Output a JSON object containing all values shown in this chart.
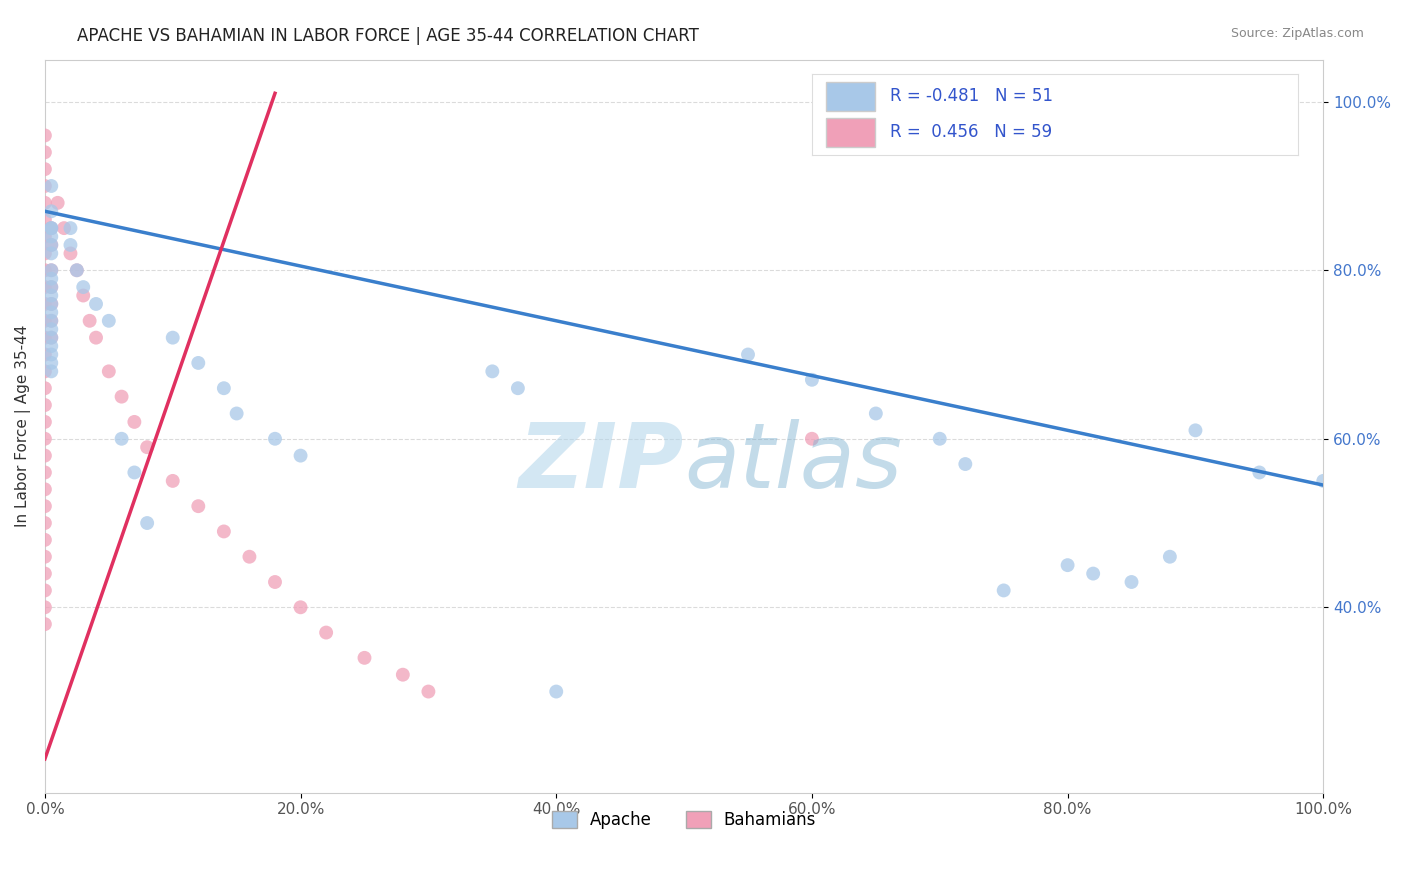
{
  "title": "APACHE VS BAHAMIAN IN LABOR FORCE | AGE 35-44 CORRELATION CHART",
  "source": "Source: ZipAtlas.com",
  "ylabel": "In Labor Force | Age 35-44",
  "xlim": [
    0.0,
    1.0
  ],
  "ylim": [
    0.18,
    1.05
  ],
  "xticks": [
    0.0,
    0.2,
    0.4,
    0.6,
    0.8,
    1.0
  ],
  "yticks": [
    0.4,
    0.6,
    0.8,
    1.0
  ],
  "ytick_labels": [
    "40.0%",
    "60.0%",
    "80.0%",
    "100.0%"
  ],
  "xtick_labels": [
    "0.0%",
    "20.0%",
    "40.0%",
    "60.0%",
    "80.0%",
    "100.0%"
  ],
  "apache_color": "#a8c8e8",
  "bahamian_color": "#f0a0b8",
  "apache_line_color": "#3a7fcc",
  "bahamian_line_color": "#e03060",
  "r_text_color": "#3355cc",
  "watermark_color": "#c8e0f0",
  "background_color": "#ffffff",
  "grid_color": "#cccccc",
  "apache_R": -0.481,
  "apache_N": 51,
  "bahamian_R": 0.456,
  "bahamian_N": 59,
  "apache_x": [
    0.005,
    0.005,
    0.005,
    0.005,
    0.005,
    0.005,
    0.005,
    0.005,
    0.005,
    0.005,
    0.005,
    0.005,
    0.005,
    0.005,
    0.005,
    0.005,
    0.005,
    0.005,
    0.005,
    0.005,
    0.02,
    0.02,
    0.025,
    0.03,
    0.04,
    0.05,
    0.06,
    0.07,
    0.08,
    0.1,
    0.12,
    0.14,
    0.15,
    0.18,
    0.2,
    0.35,
    0.37,
    0.4,
    0.55,
    0.6,
    0.65,
    0.7,
    0.72,
    0.75,
    0.8,
    0.82,
    0.85,
    0.88,
    0.9,
    0.95,
    1.0
  ],
  "apache_y": [
    0.87,
    0.85,
    0.84,
    0.83,
    0.82,
    0.8,
    0.79,
    0.78,
    0.77,
    0.76,
    0.75,
    0.74,
    0.73,
    0.72,
    0.71,
    0.7,
    0.69,
    0.68,
    0.85,
    0.9,
    0.85,
    0.83,
    0.8,
    0.78,
    0.76,
    0.74,
    0.6,
    0.56,
    0.5,
    0.72,
    0.69,
    0.66,
    0.63,
    0.6,
    0.58,
    0.68,
    0.66,
    0.3,
    0.7,
    0.67,
    0.63,
    0.6,
    0.57,
    0.42,
    0.45,
    0.44,
    0.43,
    0.46,
    0.61,
    0.56,
    0.55
  ],
  "bahamian_x": [
    0.0,
    0.0,
    0.0,
    0.0,
    0.0,
    0.0,
    0.0,
    0.0,
    0.0,
    0.0,
    0.0,
    0.0,
    0.0,
    0.0,
    0.0,
    0.0,
    0.0,
    0.0,
    0.0,
    0.0,
    0.0,
    0.0,
    0.0,
    0.0,
    0.0,
    0.0,
    0.0,
    0.0,
    0.0,
    0.0,
    0.005,
    0.005,
    0.005,
    0.005,
    0.005,
    0.005,
    0.005,
    0.01,
    0.015,
    0.02,
    0.025,
    0.03,
    0.035,
    0.04,
    0.05,
    0.06,
    0.07,
    0.08,
    0.1,
    0.12,
    0.14,
    0.16,
    0.18,
    0.2,
    0.22,
    0.25,
    0.28,
    0.3,
    0.6
  ],
  "bahamian_y": [
    0.96,
    0.94,
    0.92,
    0.9,
    0.88,
    0.86,
    0.84,
    0.82,
    0.8,
    0.78,
    0.76,
    0.74,
    0.72,
    0.7,
    0.68,
    0.66,
    0.64,
    0.62,
    0.6,
    0.58,
    0.56,
    0.54,
    0.52,
    0.5,
    0.48,
    0.46,
    0.44,
    0.42,
    0.4,
    0.38,
    0.85,
    0.83,
    0.8,
    0.78,
    0.76,
    0.74,
    0.72,
    0.88,
    0.85,
    0.82,
    0.8,
    0.77,
    0.74,
    0.72,
    0.68,
    0.65,
    0.62,
    0.59,
    0.55,
    0.52,
    0.49,
    0.46,
    0.43,
    0.4,
    0.37,
    0.34,
    0.32,
    0.3,
    0.6
  ],
  "apache_line_x0": 0.0,
  "apache_line_x1": 1.0,
  "apache_line_y0": 0.87,
  "apache_line_y1": 0.545,
  "bahamian_line_x0": 0.0,
  "bahamian_line_x1": 0.18,
  "bahamian_line_y0": 0.22,
  "bahamian_line_y1": 1.01
}
